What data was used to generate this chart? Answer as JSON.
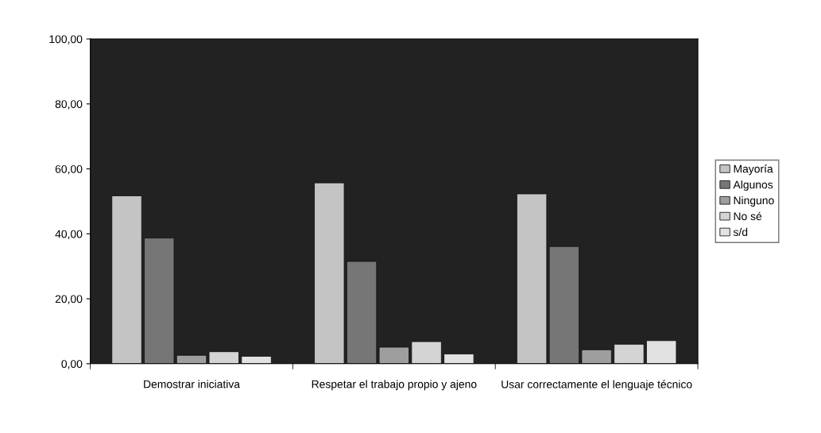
{
  "chart_data": {
    "type": "bar",
    "categories": [
      "Demostrar iniciativa",
      "Respetar el trabajo propio y ajeno",
      "Usar correctamente el lenguaje técnico"
    ],
    "series": [
      {
        "name": "Mayoría",
        "color": "#c4c4c4",
        "values": [
          51.7,
          55.7,
          52.3
        ]
      },
      {
        "name": "Algunos",
        "color": "#767676",
        "values": [
          38.7,
          31.5,
          36.1
        ]
      },
      {
        "name": "Ninguno",
        "color": "#9e9e9e",
        "values": [
          2.6,
          5.1,
          4.3
        ]
      },
      {
        "name": "No sé",
        "color": "#d4d4d4",
        "values": [
          3.7,
          6.8,
          6.0
        ]
      },
      {
        "name": "s/d",
        "color": "#e2e2e2",
        "values": [
          2.3,
          3.0,
          7.1
        ]
      }
    ],
    "ylim": [
      0,
      100
    ],
    "yticks": [
      {
        "value": 0,
        "label": "0,00"
      },
      {
        "value": 20,
        "label": "20,00"
      },
      {
        "value": 40,
        "label": "40,00"
      },
      {
        "value": 60,
        "label": "60,00"
      },
      {
        "value": 80,
        "label": "80,00"
      },
      {
        "value": 100,
        "label": "100,00"
      }
    ],
    "grid": false,
    "legend": "right"
  }
}
